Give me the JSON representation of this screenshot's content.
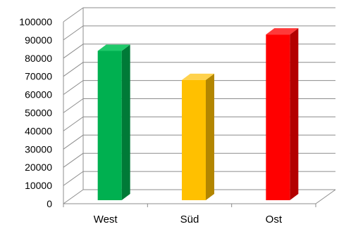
{
  "chart_data": {
    "type": "bar",
    "categories": [
      "West",
      "Süd",
      "Ost"
    ],
    "values": [
      84000,
      68000,
      93000
    ],
    "ylim": [
      0,
      100000
    ],
    "yticks": [
      "0",
      "10000",
      "20000",
      "30000",
      "40000",
      "50000",
      "60000",
      "70000",
      "80000",
      "90000",
      "100000"
    ],
    "grid": true,
    "legend": "none",
    "colors": {
      "bars_front": [
        "#00b050",
        "#ffc000",
        "#ff0000"
      ],
      "bars_side": [
        "#007a37",
        "#b38600",
        "#b30000"
      ],
      "bars_top": [
        "#1fc96a",
        "#ffd24d",
        "#ff3a3a"
      ],
      "gridline": "#8c8c8c",
      "axis_text": "#000000"
    }
  }
}
